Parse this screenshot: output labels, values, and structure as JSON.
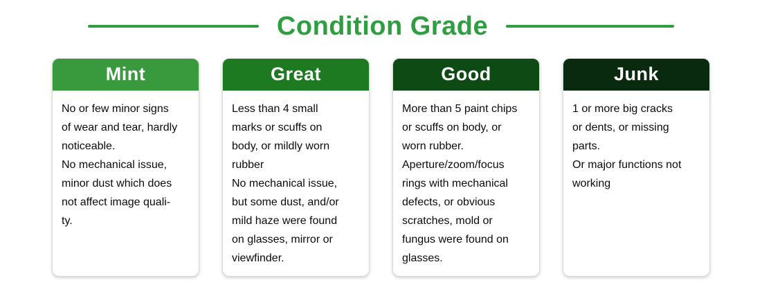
{
  "page": {
    "title": "Condition Grade",
    "accent_color": "#2f9e41",
    "background_color": "#ffffff"
  },
  "cards": [
    {
      "title": "Mint",
      "header_color": "#399a3d",
      "body": "No or few minor signs\nof wear and tear, hardly\nnoticeable.\nNo mechanical issue,\nminor dust which does\nnot affect image quali-\nty."
    },
    {
      "title": "Great",
      "header_color": "#1d7a20",
      "body": "Less than 4 small\nmarks or scuffs on\nbody, or mildly worn\nrubber\nNo mechanical issue,\nbut some dust, and/or\nmild haze were found\non glasses, mirror or\nviewfinder."
    },
    {
      "title": "Good",
      "header_color": "#0e4a14",
      "body": "More than 5 paint chips\nor scuffs on body, or\nworn rubber.\nAperture/zoom/focus\nrings with mechanical\ndefects, or obvious\nscratches, mold or\nfungus were found on\nglasses."
    },
    {
      "title": "Junk",
      "header_color": "#0a2a10",
      "body": "1 or more big cracks\nor dents, or missing\nparts.\nOr major functions not\nworking"
    }
  ]
}
